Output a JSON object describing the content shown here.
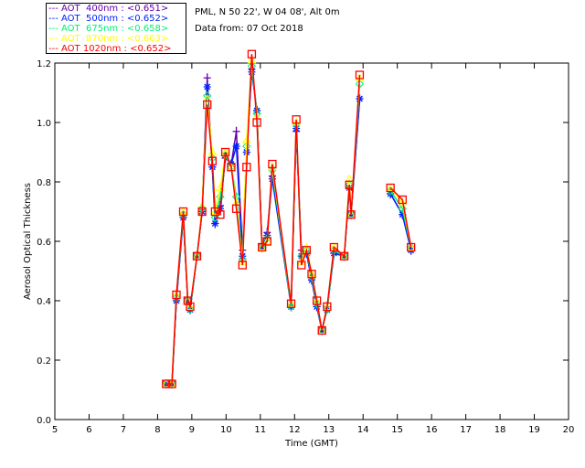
{
  "header": {
    "location": "PML, N 50 22', W 04 08', Alt 0m",
    "date": "Data from: 07 Oct 2018"
  },
  "chart_data": {
    "type": "line",
    "title": "",
    "xlabel": "Time (GMT)",
    "ylabel": "Aerosol Optical Thickness",
    "xlim": [
      5,
      20
    ],
    "ylim": [
      0,
      1.2
    ],
    "xticks": [
      "5",
      "6",
      "7",
      "8",
      "9",
      "10",
      "11",
      "12",
      "13",
      "14",
      "15",
      "16",
      "17",
      "18",
      "19",
      "20"
    ],
    "yticks": [
      "0.0",
      "0.2",
      "0.4",
      "0.6",
      "0.8",
      "1.0",
      "1.2"
    ],
    "legend_position": "top-left-outside",
    "x": [
      8.25,
      8.42,
      8.55,
      8.75,
      8.88,
      8.95,
      9.15,
      9.3,
      9.45,
      9.6,
      9.68,
      9.83,
      9.98,
      10.15,
      10.3,
      10.48,
      10.6,
      10.75,
      10.9,
      11.05,
      11.2,
      11.35,
      11.9,
      12.05,
      12.2,
      12.35,
      12.5,
      12.65,
      12.8,
      12.95,
      13.15,
      13.45,
      13.6,
      13.65,
      13.9,
      null,
      14.8,
      15.15,
      15.4
    ],
    "series": [
      {
        "name": "AOT  400nm : <0.651>",
        "color": "#6600aa",
        "marker": "plus",
        "values": [
          0.12,
          0.12,
          0.4,
          0.68,
          0.4,
          0.37,
          0.55,
          0.7,
          1.15,
          0.85,
          0.66,
          0.72,
          0.88,
          0.86,
          0.97,
          0.57,
          0.9,
          1.18,
          1.04,
          0.58,
          0.63,
          0.82,
          0.38,
          0.97,
          0.57,
          0.56,
          0.47,
          0.38,
          0.3,
          0.38,
          0.56,
          0.55,
          0.78,
          0.69,
          1.08,
          null,
          0.76,
          0.69,
          0.57
        ]
      },
      {
        "name": "AOT  500nm : <0.652>",
        "color": "#0022ff",
        "marker": "star",
        "values": [
          0.12,
          0.12,
          0.4,
          0.68,
          0.4,
          0.37,
          0.55,
          0.7,
          1.12,
          0.85,
          0.66,
          0.71,
          0.89,
          0.86,
          0.92,
          0.55,
          0.9,
          1.17,
          1.04,
          0.58,
          0.62,
          0.81,
          0.38,
          0.98,
          0.55,
          0.56,
          0.47,
          0.38,
          0.3,
          0.37,
          0.56,
          0.55,
          0.78,
          0.69,
          1.08,
          null,
          0.76,
          0.69,
          0.57
        ]
      },
      {
        "name": "AOT  675nm : <0.658>",
        "color": "#00ee77",
        "marker": "diamond",
        "values": [
          0.12,
          0.12,
          0.41,
          0.69,
          0.4,
          0.37,
          0.55,
          0.71,
          1.09,
          0.88,
          0.68,
          0.75,
          0.89,
          0.85,
          0.75,
          0.54,
          0.92,
          1.19,
          1.03,
          0.58,
          0.61,
          0.84,
          0.38,
          0.99,
          0.55,
          0.57,
          0.48,
          0.39,
          0.3,
          0.37,
          0.57,
          0.55,
          0.79,
          0.69,
          1.13,
          null,
          0.77,
          0.71,
          0.58
        ]
      },
      {
        "name": "AOT  870nm : <0.663>",
        "color": "#ffff00",
        "marker": "triangle",
        "values": [
          0.12,
          0.12,
          0.42,
          0.7,
          0.4,
          0.38,
          0.55,
          0.72,
          1.08,
          0.9,
          0.7,
          0.78,
          0.9,
          0.85,
          0.73,
          0.53,
          0.94,
          1.21,
          1.02,
          0.58,
          0.6,
          0.85,
          0.39,
          1.0,
          0.53,
          0.58,
          0.49,
          0.4,
          0.3,
          0.38,
          0.58,
          0.55,
          0.81,
          0.69,
          1.15,
          null,
          0.78,
          0.73,
          0.58
        ]
      },
      {
        "name": "AOT 1020nm : <0.652>",
        "color": "#ff0000",
        "marker": "square",
        "values": [
          0.12,
          0.12,
          0.42,
          0.7,
          0.4,
          0.38,
          0.55,
          0.7,
          1.06,
          0.87,
          0.7,
          0.69,
          0.9,
          0.85,
          0.71,
          0.52,
          0.85,
          1.23,
          1.0,
          0.58,
          0.6,
          0.86,
          0.39,
          1.01,
          0.52,
          0.57,
          0.49,
          0.4,
          0.3,
          0.38,
          0.58,
          0.55,
          0.79,
          0.69,
          1.16,
          null,
          0.78,
          0.74,
          0.58
        ]
      }
    ]
  }
}
